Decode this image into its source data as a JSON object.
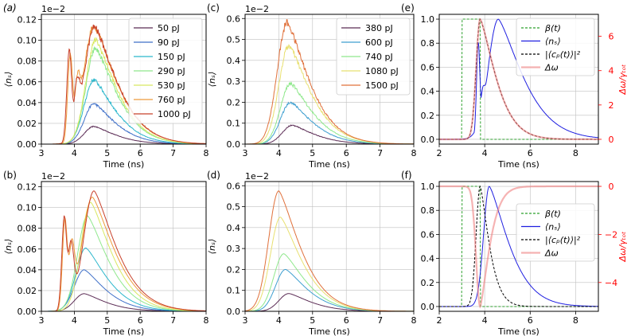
{
  "figure": {
    "background": "#ffffff"
  },
  "chart_data": [
    {
      "id": "a",
      "panel_label": "(a)",
      "type": "line",
      "xlabel": "Time (ns)",
      "ylabel": "⟨nₛ⟩",
      "xlim": [
        3,
        8
      ],
      "ylim": [
        0,
        0.125
      ],
      "grid": true,
      "xticks": [
        3,
        4,
        5,
        6,
        7,
        8
      ],
      "xtick_labels": [
        "3",
        "4",
        "5",
        "6",
        "7",
        "8"
      ],
      "yticks": [
        0,
        0.02,
        0.04,
        0.06,
        0.08,
        0.1,
        0.12
      ],
      "ytick_labels": [
        "0.00",
        "0.02",
        "0.04",
        "0.06",
        "0.08",
        "0.10",
        "0.12"
      ],
      "offset_text": "1e−2",
      "legend_position": "upper right",
      "noisy": true,
      "series": [
        {
          "name": "50 pJ",
          "color": "#5b2c55",
          "kind": "bump",
          "peak": 0.017,
          "t0": 4.6
        },
        {
          "name": "90 pJ",
          "color": "#3e6fc8",
          "kind": "bump",
          "peak": 0.039,
          "t0": 4.6
        },
        {
          "name": "150 pJ",
          "color": "#2bb7cc",
          "kind": "bump",
          "peak": 0.062,
          "t0": 4.6
        },
        {
          "name": "290 pJ",
          "color": "#8fe88c",
          "kind": "bump",
          "peak": 0.092,
          "t0": 4.65
        },
        {
          "name": "530 pJ",
          "color": "#d8e860",
          "kind": "bump",
          "peak": 0.1,
          "t0": 4.65
        },
        {
          "name": "760 pJ",
          "color": "#ee9b3c",
          "kind": "double",
          "p1": 0.088,
          "t1": 3.88,
          "dip": 0.074,
          "td": 4.12,
          "peak": 0.114,
          "t0": 4.6
        },
        {
          "name": "1000 pJ",
          "color": "#c8402a",
          "kind": "double",
          "p1": 0.09,
          "t1": 3.85,
          "dip": 0.07,
          "td": 4.1,
          "peak": 0.113,
          "t0": 4.62
        }
      ]
    },
    {
      "id": "b",
      "panel_label": "(b)",
      "type": "line",
      "xlabel": "Time (ns)",
      "ylabel": "⟨nₛ⟩",
      "xlim": [
        3,
        8
      ],
      "ylim": [
        0,
        0.125
      ],
      "grid": true,
      "xticks": [
        3,
        4,
        5,
        6,
        7,
        8
      ],
      "xtick_labels": [
        "3",
        "4",
        "5",
        "6",
        "7",
        "8"
      ],
      "yticks": [
        0,
        0.02,
        0.04,
        0.06,
        0.08,
        0.1,
        0.12
      ],
      "ytick_labels": [
        "0.00",
        "0.02",
        "0.04",
        "0.06",
        "0.08",
        "0.10",
        "0.12"
      ],
      "offset_text": "1e−2",
      "noisy": false,
      "series": [
        {
          "name": "50 pJ",
          "color": "#5b2c55",
          "kind": "bump",
          "peak": 0.017,
          "t0": 4.3
        },
        {
          "name": "90 pJ",
          "color": "#3e6fc8",
          "kind": "bump",
          "peak": 0.04,
          "t0": 4.3
        },
        {
          "name": "150 pJ",
          "color": "#2bb7cc",
          "kind": "bump",
          "peak": 0.061,
          "t0": 4.35
        },
        {
          "name": "290 pJ",
          "color": "#8fe88c",
          "kind": "bump",
          "peak": 0.092,
          "t0": 4.4
        },
        {
          "name": "530 pJ",
          "color": "#d8e860",
          "kind": "bump",
          "peak": 0.105,
          "t0": 4.5
        },
        {
          "name": "760 pJ",
          "color": "#ee9b3c",
          "kind": "double",
          "p1": 0.09,
          "t1": 3.72,
          "dip": 0.076,
          "td": 3.93,
          "peak": 0.11,
          "t0": 4.55
        },
        {
          "name": "1000 pJ",
          "color": "#c8402a",
          "kind": "double",
          "p1": 0.093,
          "t1": 3.7,
          "dip": 0.075,
          "td": 3.9,
          "peak": 0.116,
          "t0": 4.6
        }
      ]
    },
    {
      "id": "c",
      "panel_label": "(c)",
      "type": "line",
      "xlabel": "Time (ns)",
      "ylabel": "⟨nₛ⟩",
      "xlim": [
        3,
        8
      ],
      "ylim": [
        0,
        0.62
      ],
      "grid": true,
      "xticks": [
        3,
        4,
        5,
        6,
        7,
        8
      ],
      "xtick_labels": [
        "3",
        "4",
        "5",
        "6",
        "7",
        "8"
      ],
      "yticks": [
        0,
        0.1,
        0.2,
        0.3,
        0.4,
        0.5,
        0.6
      ],
      "ytick_labels": [
        "0.0",
        "0.1",
        "0.2",
        "0.3",
        "0.4",
        "0.5",
        "0.6"
      ],
      "offset_text": "1e−2",
      "legend_position": "upper right",
      "noisy": true,
      "series": [
        {
          "name": "380 pJ",
          "color": "#5b2c55",
          "kind": "bump",
          "peak": 0.09,
          "t0": 4.4
        },
        {
          "name": "600 pJ",
          "color": "#3e9fd0",
          "kind": "bump",
          "peak": 0.2,
          "t0": 4.35
        },
        {
          "name": "740 pJ",
          "color": "#8fe88c",
          "kind": "bump",
          "peak": 0.29,
          "t0": 4.35
        },
        {
          "name": "1080 pJ",
          "color": "#e8e070",
          "kind": "bump",
          "peak": 0.47,
          "t0": 4.3
        },
        {
          "name": "1500 pJ",
          "color": "#e0703a",
          "kind": "bump",
          "peak": 0.58,
          "t0": 4.25
        }
      ]
    },
    {
      "id": "d",
      "panel_label": "(d)",
      "type": "line",
      "xlabel": "Time (ns)",
      "ylabel": "⟨nₛ⟩",
      "xlim": [
        3,
        8
      ],
      "ylim": [
        0,
        0.62
      ],
      "grid": true,
      "xticks": [
        3,
        4,
        5,
        6,
        7,
        8
      ],
      "xtick_labels": [
        "3",
        "4",
        "5",
        "6",
        "7",
        "8"
      ],
      "yticks": [
        0,
        0.1,
        0.2,
        0.3,
        0.4,
        0.5,
        0.6
      ],
      "ytick_labels": [
        "0.0",
        "0.1",
        "0.2",
        "0.3",
        "0.4",
        "0.5",
        "0.6"
      ],
      "offset_text": "1e−2",
      "noisy": false,
      "series": [
        {
          "name": "380 pJ",
          "color": "#5b2c55",
          "kind": "bump",
          "peak": 0.085,
          "t0": 4.3
        },
        {
          "name": "600 pJ",
          "color": "#3e9fd0",
          "kind": "bump",
          "peak": 0.2,
          "t0": 4.2
        },
        {
          "name": "740 pJ",
          "color": "#8fe88c",
          "kind": "bump",
          "peak": 0.275,
          "t0": 4.15
        },
        {
          "name": "1080 pJ",
          "color": "#e8e070",
          "kind": "bump",
          "peak": 0.45,
          "t0": 4.05
        },
        {
          "name": "1500 pJ",
          "color": "#e0703a",
          "kind": "bump",
          "peak": 0.575,
          "t0": 4.0
        }
      ]
    },
    {
      "id": "e",
      "panel_label": "(e)",
      "type": "line",
      "xlabel": "Time (ns)",
      "xlim": [
        2,
        9
      ],
      "ylim": [
        -0.04,
        1.04
      ],
      "grid": true,
      "xticks": [
        2,
        4,
        6,
        8
      ],
      "xtick_labels": [
        "2",
        "4",
        "6",
        "8"
      ],
      "yticks": [
        0,
        0.2,
        0.4,
        0.6,
        0.8,
        1.0
      ],
      "ytick_labels": [
        "0.0",
        "0.2",
        "0.4",
        "0.6",
        "0.8",
        "1.0"
      ],
      "y2label": "Δω/γₜₒₜ",
      "y2lim": [
        -0.28,
        7.28
      ],
      "y2color": "#ff0000",
      "y2ticks": [
        0,
        2,
        4,
        6
      ],
      "y2tick_labels": [
        "0",
        "2",
        "4",
        "6"
      ],
      "legend_position": "upper right",
      "series": [
        {
          "name": "β(t)",
          "color": "#2ca02c",
          "style": "dashed",
          "kind": "window",
          "from": 3.0,
          "to": 3.8
        },
        {
          "name": "⟨nₛ⟩",
          "color": "#1f1fe0",
          "style": "solid",
          "kind": "double",
          "p1": 0.82,
          "t1": 3.72,
          "dip": 0.46,
          "td": 3.95,
          "peak": 1.0,
          "t0": 4.6,
          "rise": 0.45,
          "decay": 1.5
        },
        {
          "name": "|⟨cₚ(t)⟩|²",
          "color": "#000000",
          "style": "dashed",
          "kind": "bump",
          "peak": 1.0,
          "t0": 3.8,
          "rise": 0.25,
          "decay": 0.95
        },
        {
          "name": "Δω",
          "color": "#f08080",
          "style": "solid",
          "axis": "right",
          "kind": "bump",
          "peak": 7.0,
          "t0": 3.8,
          "rise": 0.25,
          "decay": 0.95
        }
      ]
    },
    {
      "id": "f",
      "panel_label": "(f)",
      "type": "line",
      "xlabel": "Time (ns)",
      "xlim": [
        2,
        9
      ],
      "ylim": [
        -0.04,
        1.04
      ],
      "grid": true,
      "xticks": [
        2,
        4,
        6,
        8
      ],
      "xtick_labels": [
        "2",
        "4",
        "6",
        "8"
      ],
      "yticks": [
        0,
        0.2,
        0.4,
        0.6,
        0.8,
        1.0
      ],
      "ytick_labels": [
        "0.0",
        "0.2",
        "0.4",
        "0.6",
        "0.8",
        "1.0"
      ],
      "y2label": "Δω/γₜₒₜ",
      "y2lim": [
        -5.2,
        0.2
      ],
      "y2color": "#ff0000",
      "y2ticks": [
        -4,
        -2,
        0
      ],
      "y2tick_labels": [
        "−4",
        "−2",
        "0"
      ],
      "legend_position": "right",
      "series": [
        {
          "name": "β(t)",
          "color": "#2ca02c",
          "style": "dashed",
          "kind": "window",
          "from": 3.0,
          "to": 3.8
        },
        {
          "name": "⟨nₛ⟩",
          "color": "#1f1fe0",
          "style": "solid",
          "kind": "bump",
          "peak": 1.0,
          "t0": 4.2,
          "rise": 0.35,
          "decay": 1.2
        },
        {
          "name": "|⟨cₚ(t)⟩|²",
          "color": "#000000",
          "style": "dashed",
          "kind": "bump",
          "peak": 1.0,
          "t0": 3.8,
          "rise": 0.25,
          "decay": 0.55
        },
        {
          "name": "Δω",
          "color": "#f08080",
          "style": "solid",
          "axis": "right",
          "kind": "bump",
          "peak": -5.0,
          "base": 0.0,
          "t0": 3.8,
          "rise": 0.25,
          "decay": 0.55
        }
      ]
    }
  ]
}
